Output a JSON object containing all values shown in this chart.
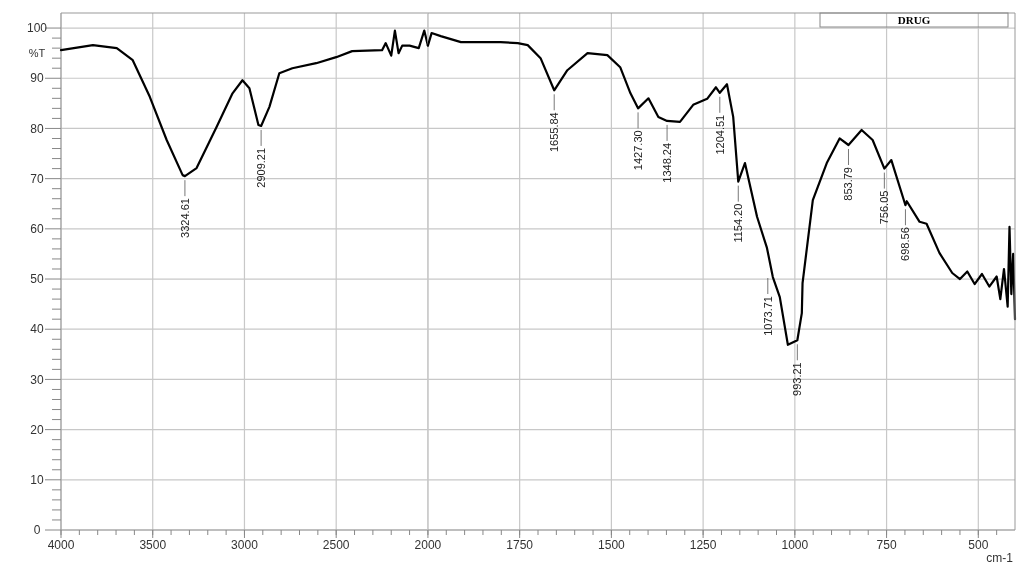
{
  "chart_data": [
    {
      "type": "line",
      "ylabel": "%T",
      "xlim": [
        4000,
        2000
      ],
      "xticks": [
        4000,
        3500,
        3000,
        2500,
        2000
      ],
      "ylim": [
        0,
        103
      ],
      "yticks": [
        0,
        10,
        20,
        30,
        40,
        50,
        60,
        70,
        80,
        90,
        100
      ],
      "grid": true,
      "line_style": "solid",
      "series": [
        {
          "color": "#000000",
          "x": [
            4000,
            3826,
            3696,
            3609,
            3516,
            3424,
            3337,
            3324.61,
            3261,
            3152,
            3065,
            3011,
            2973,
            2924,
            2909.21,
            2864,
            2810,
            2739,
            2609,
            2500,
            2413,
            2250,
            2230,
            2200,
            2180,
            2160,
            2140,
            2100,
            2050,
            2020,
            2000
          ],
          "values": [
            95.6,
            96.6,
            96,
            93.6,
            86.3,
            77.7,
            70.7,
            70.5,
            72.1,
            80.3,
            87,
            89.6,
            88,
            80.7,
            80.5,
            84.3,
            91,
            92,
            93,
            94.2,
            95.4,
            95.6,
            97,
            94.5,
            99.5,
            95,
            96.5,
            96.5,
            96,
            99.5,
            96.5
          ]
        }
      ],
      "annotations": [
        {
          "text": "3324.61",
          "x": 3324.61,
          "y": 70.5
        },
        {
          "text": "2909.21",
          "x": 2909.21,
          "y": 80.5
        }
      ]
    },
    {
      "type": "line",
      "xlabel": "cm-1",
      "xlim": [
        2000,
        400
      ],
      "xticks": [
        1750,
        1500,
        1250,
        1000,
        750,
        500
      ],
      "ylim": [
        0,
        103
      ],
      "yticks": [
        0,
        10,
        20,
        30,
        40,
        50,
        60,
        70,
        80,
        90,
        100
      ],
      "tick_labels": "x",
      "grid": true,
      "legend": "top right",
      "line_style": "solid",
      "series": [
        {
          "name": "DRUG",
          "color": "#000000",
          "x": [
            2000,
            1990,
            1965,
            1910,
            1802,
            1755,
            1728,
            1693,
            1655.84,
            1620,
            1565,
            1511,
            1476,
            1448,
            1427.3,
            1399,
            1372,
            1348.24,
            1313,
            1277,
            1239,
            1215,
            1204.51,
            1185,
            1168,
            1154.2,
            1136,
            1103,
            1076,
            1060,
            1041,
            1019,
            993.21,
            981,
            979,
            951,
            913,
            878,
            853.79,
            818,
            788,
            756.05,
            737,
            698.56,
            695,
            660,
            641,
            606,
            571,
            550,
            530,
            510,
            490,
            470,
            450,
            440,
            430,
            420,
            415,
            410,
            405,
            400
          ],
          "values": [
            96.5,
            99,
            98.4,
            97.2,
            97.2,
            97,
            96.6,
            94,
            87.6,
            91.6,
            95,
            94.6,
            92.2,
            87,
            84,
            86,
            82.3,
            81.5,
            81.3,
            84.7,
            85.9,
            88.2,
            87.1,
            88.8,
            82.3,
            69.4,
            73.1,
            62.4,
            56.2,
            50.4,
            46.4,
            36.9,
            37.8,
            43.2,
            49.2,
            65.7,
            73.1,
            78,
            76.7,
            79.7,
            77.7,
            72,
            73.7,
            64.7,
            65.5,
            61.4,
            61,
            55.2,
            51.2,
            50,
            51.5,
            49,
            51,
            48.5,
            50.5,
            46,
            52,
            44.5,
            60.4,
            47,
            55,
            42
          ]
        }
      ],
      "annotations": [
        {
          "text": "1655.84",
          "x": 1655.84,
          "y": 87.6
        },
        {
          "text": "1427.30",
          "x": 1427.3,
          "y": 84
        },
        {
          "text": "1348.24",
          "x": 1348.24,
          "y": 81.5
        },
        {
          "text": "1204.51",
          "x": 1204.51,
          "y": 87.1
        },
        {
          "text": "1154.20",
          "x": 1154.2,
          "y": 69.4
        },
        {
          "text": "1073.71",
          "x": 1073.71,
          "y": 51
        },
        {
          "text": "993.21",
          "x": 993.21,
          "y": 37.8
        },
        {
          "text": "853.79",
          "x": 853.79,
          "y": 76.7
        },
        {
          "text": "756.05",
          "x": 756.05,
          "y": 72
        },
        {
          "text": "698.56",
          "x": 698.56,
          "y": 64.7
        }
      ]
    }
  ]
}
